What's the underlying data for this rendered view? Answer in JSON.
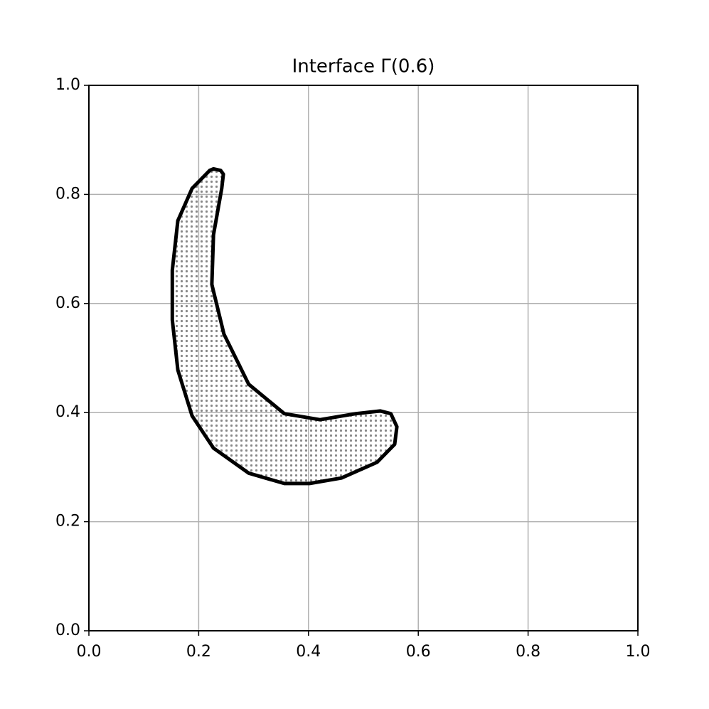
{
  "chart_data": {
    "type": "area",
    "title": "Interface Γ(0.6)",
    "x": [
      0.24,
      0.227,
      0.22,
      0.188,
      0.162,
      0.152,
      0.152,
      0.162,
      0.188,
      0.227,
      0.291,
      0.356,
      0.402,
      0.46,
      0.525,
      0.557,
      0.561,
      0.55,
      0.531,
      0.486,
      0.421,
      0.356,
      0.291,
      0.246,
      0.224,
      0.227,
      0.242,
      0.245
    ],
    "y": [
      0.844,
      0.847,
      0.844,
      0.811,
      0.752,
      0.661,
      0.57,
      0.478,
      0.394,
      0.335,
      0.289,
      0.27,
      0.27,
      0.28,
      0.309,
      0.342,
      0.374,
      0.398,
      0.403,
      0.398,
      0.387,
      0.398,
      0.452,
      0.544,
      0.635,
      0.726,
      0.811,
      0.837
    ],
    "color": "#000000",
    "fill": "#888888",
    "xlim": [
      0,
      1
    ],
    "ylim": [
      0,
      1
    ],
    "xticks": [
      {
        "value": 0,
        "label": "0.0"
      },
      0.2,
      0.4,
      0.6,
      0.8,
      {
        "value": 1,
        "label": "1.0"
      }
    ],
    "yticks": [
      {
        "value": 0,
        "label": "0.0"
      },
      0.2,
      0.4,
      0.6,
      0.8,
      {
        "value": 1,
        "label": "1.0"
      }
    ],
    "grid": true
  }
}
